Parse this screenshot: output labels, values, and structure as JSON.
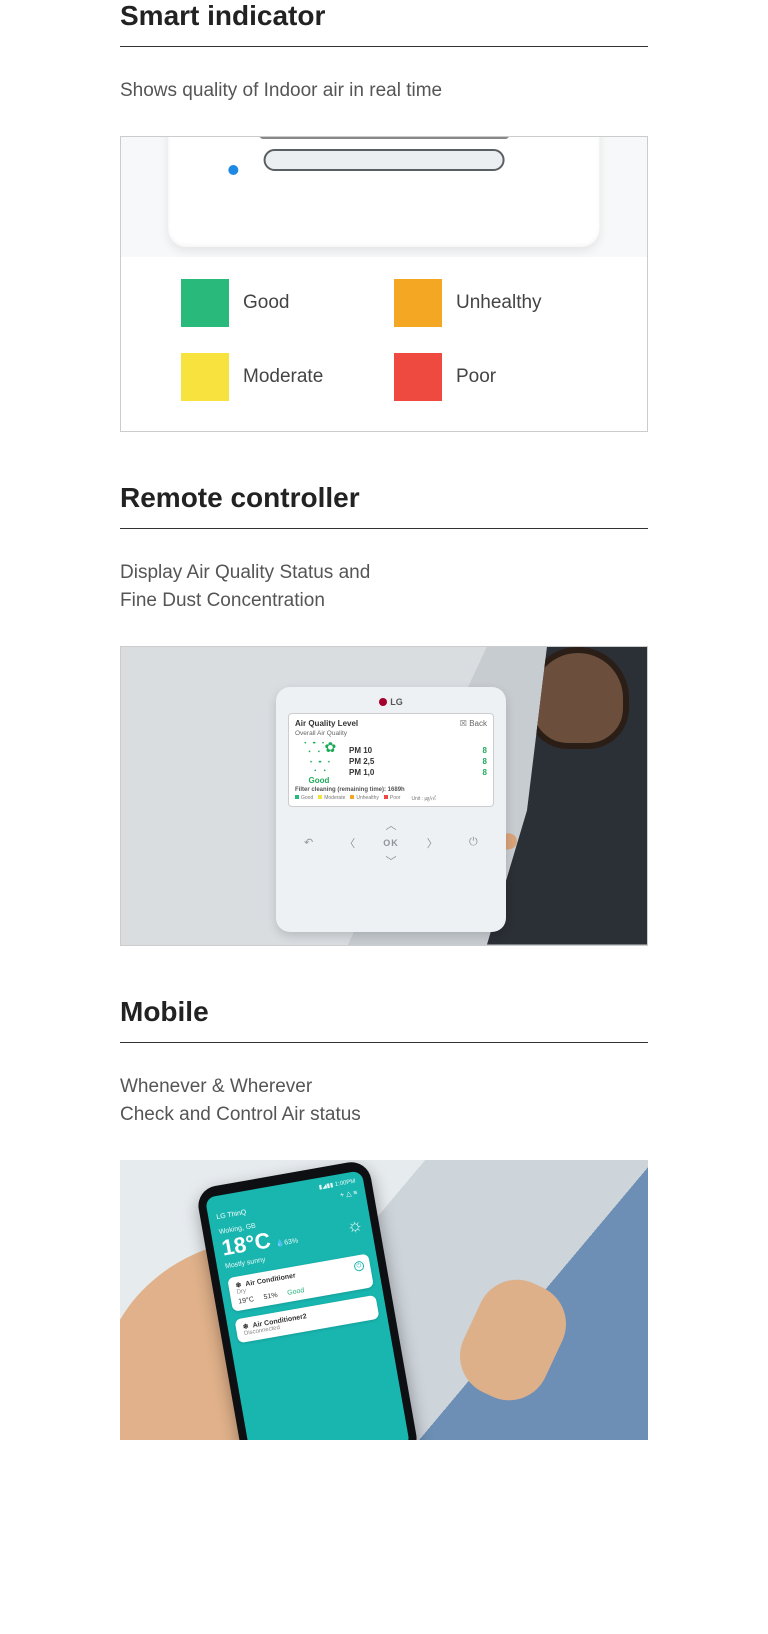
{
  "colors": {
    "good": "#29b97a",
    "moderate": "#f7e23e",
    "unhealthy": "#f4a722",
    "poor": "#ef4a3f",
    "led": "#1e88e5",
    "accent": "#19b6b0"
  },
  "section1": {
    "title": "Smart indicator",
    "desc": "Shows quality of Indoor air in real time",
    "legend": {
      "good": "Good",
      "moderate": "Moderate",
      "unhealthy": "Unhealthy",
      "poor": "Poor"
    }
  },
  "section2": {
    "title": "Remote controller",
    "desc": "Display Air Quality Status and\nFine Dust Concentration",
    "controller": {
      "brand": "LG",
      "heading": "Air Quality Level",
      "back": "Back",
      "subhead": "Overall Air Quality",
      "status": "Good",
      "readings": [
        {
          "label": "PM 10",
          "value": "8"
        },
        {
          "label": "PM 2,5",
          "value": "8"
        },
        {
          "label": "PM 1,0",
          "value": "8"
        }
      ],
      "filter": "Filter cleaning (remaining time): 1689h",
      "mini_legend": {
        "g": "Good",
        "m": "Moderate",
        "u": "Unhealthy",
        "p": "Poor",
        "unit": "Unit : ㎍/㎥"
      },
      "keys": {
        "undo": "↶",
        "up": "︿",
        "down": "﹀",
        "left": "〈",
        "right": "〉",
        "ok": "OK",
        "power": "⏻"
      }
    }
  },
  "section3": {
    "title": "Mobile",
    "desc": "Whenever & Wherever\nCheck and Control Air status",
    "phone": {
      "status": "1:00PM",
      "signal": "▮◢▮▮",
      "app": "LG ThinQ",
      "icons": {
        "plus": "+",
        "bell": "△",
        "menu": "≡"
      },
      "city": "Woking, GB",
      "temp": "18°C",
      "humidity": "63%",
      "weather": "Mostly sunny",
      "sun": "☼",
      "card1": {
        "icon": "❄",
        "title": "Air Conditioner",
        "mode": "Dry",
        "v1": "19°C",
        "v2": "51%",
        "v3": "Good"
      },
      "card2": {
        "icon": "❄",
        "title": "Air Conditioner2",
        "mode": "Disconnected"
      }
    }
  }
}
